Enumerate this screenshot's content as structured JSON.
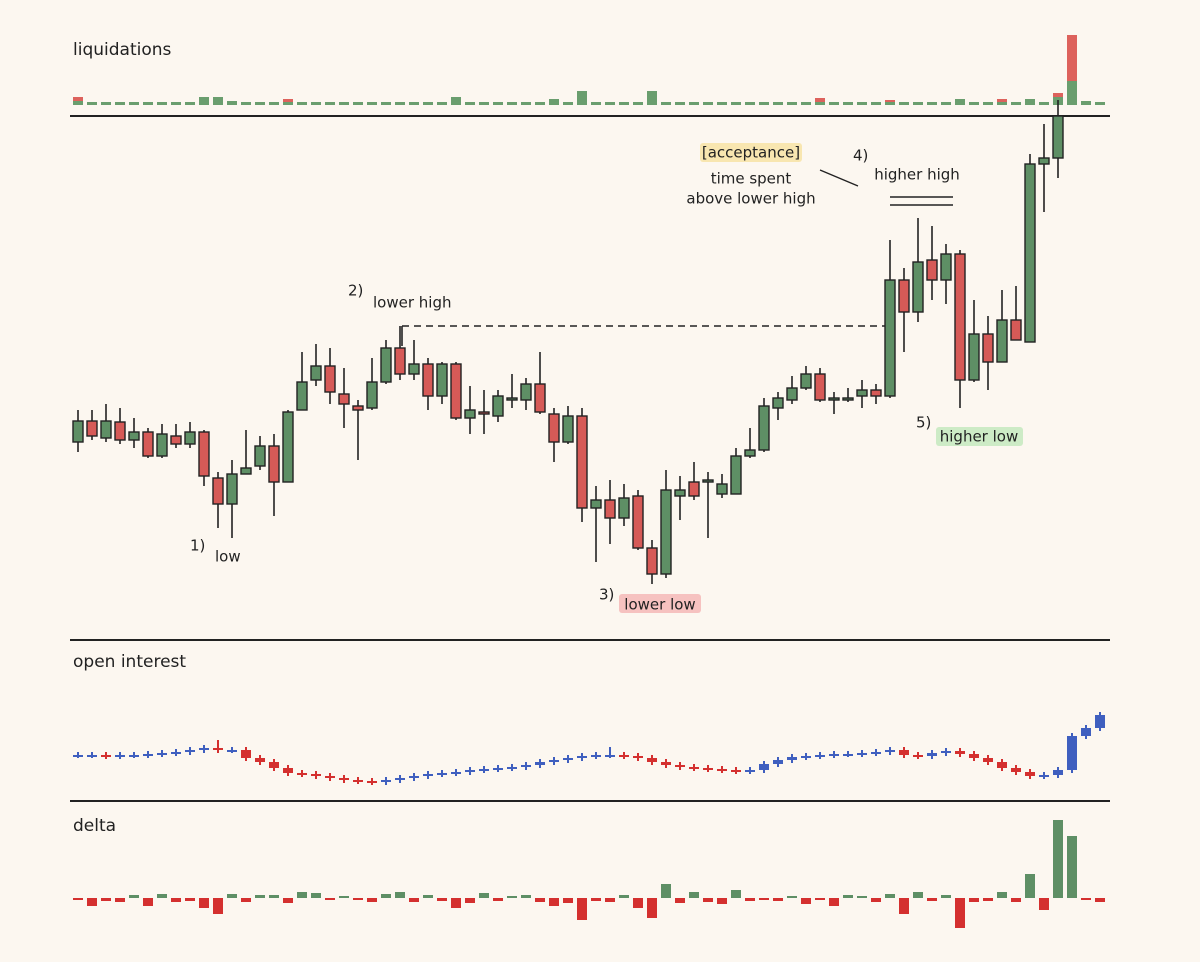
{
  "chart_data": [
    {
      "type": "bar",
      "title": "liquidations",
      "stacked": true,
      "ylim": [
        0,
        80
      ],
      "series": [
        {
          "color": "#6a9e6e",
          "values": [
            4,
            3,
            3,
            3,
            3,
            3,
            3,
            3,
            3,
            8,
            8,
            4,
            3,
            3,
            3,
            3,
            3,
            3,
            3,
            3,
            3,
            3,
            3,
            3,
            3,
            3,
            3,
            8,
            3,
            3,
            3,
            3,
            3,
            3,
            6,
            3,
            14,
            3,
            3,
            3,
            3,
            14,
            3,
            3,
            3,
            3,
            3,
            3,
            3,
            3,
            3,
            3,
            3,
            3,
            3,
            3,
            3,
            3,
            3,
            3,
            3,
            3,
            3,
            6,
            3,
            3,
            3,
            3,
            6,
            3,
            8,
            24,
            4,
            3
          ]
        },
        {
          "color": "#dd625c",
          "values": [
            4,
            0,
            0,
            0,
            0,
            0,
            0,
            0,
            0,
            0,
            0,
            0,
            0,
            0,
            0,
            3,
            0,
            0,
            0,
            0,
            0,
            0,
            0,
            0,
            0,
            0,
            0,
            0,
            0,
            0,
            0,
            0,
            0,
            0,
            0,
            0,
            0,
            0,
            0,
            0,
            0,
            0,
            0,
            0,
            0,
            0,
            0,
            0,
            0,
            0,
            0,
            0,
            0,
            4,
            0,
            0,
            0,
            0,
            2,
            0,
            0,
            0,
            0,
            0,
            0,
            0,
            3,
            0,
            0,
            0,
            4,
            46,
            0,
            0
          ]
        }
      ]
    },
    {
      "type": "candlestick",
      "ylim": [
        0,
        522
      ],
      "up_color": "#5e8f65",
      "down_color": "#d65a57",
      "body_stroke": "#222",
      "open": [
        198,
        219,
        202,
        218,
        200,
        208,
        184,
        204,
        196,
        208,
        162,
        136,
        166,
        174,
        194,
        158,
        230,
        260,
        274,
        246,
        234,
        232,
        258,
        292,
        266,
        276,
        244,
        276,
        222,
        228,
        224,
        240,
        240,
        256,
        226,
        198,
        224,
        132,
        140,
        122,
        144,
        92,
        66,
        144,
        158,
        158,
        146,
        146,
        184,
        190,
        232,
        240,
        252,
        266,
        240,
        240,
        244,
        250,
        244,
        360,
        328,
        380,
        360,
        386,
        260,
        306,
        278,
        320,
        298,
        476,
        482
      ],
      "high": [
        230,
        230,
        236,
        232,
        222,
        212,
        216,
        216,
        218,
        210,
        168,
        180,
        210,
        204,
        206,
        230,
        288,
        296,
        292,
        272,
        240,
        282,
        300,
        314,
        300,
        282,
        278,
        278,
        254,
        250,
        250,
        266,
        262,
        288,
        232,
        234,
        232,
        154,
        160,
        156,
        150,
        100,
        170,
        164,
        178,
        168,
        166,
        192,
        212,
        242,
        248,
        264,
        274,
        272,
        248,
        252,
        260,
        256,
        400,
        372,
        422,
        414,
        396,
        390,
        340,
        324,
        350,
        354,
        486,
        516,
        540
      ],
      "low": [
        188,
        200,
        198,
        196,
        192,
        182,
        182,
        192,
        192,
        154,
        112,
        102,
        166,
        170,
        124,
        158,
        230,
        254,
        236,
        212,
        180,
        230,
        256,
        260,
        260,
        230,
        236,
        220,
        206,
        206,
        218,
        232,
        230,
        226,
        178,
        196,
        118,
        78,
        96,
        114,
        90,
        56,
        62,
        120,
        140,
        102,
        142,
        146,
        182,
        188,
        220,
        236,
        250,
        238,
        226,
        238,
        232,
        236,
        242,
        288,
        318,
        340,
        336,
        232,
        258,
        250,
        278,
        300,
        298,
        428,
        462
      ],
      "close": [
        219,
        204,
        219,
        200,
        208,
        184,
        206,
        196,
        208,
        164,
        136,
        166,
        172,
        194,
        158,
        228,
        258,
        274,
        248,
        236,
        230,
        258,
        292,
        266,
        276,
        244,
        276,
        222,
        230,
        226,
        244,
        242,
        256,
        228,
        198,
        224,
        132,
        140,
        122,
        142,
        92,
        66,
        150,
        150,
        144,
        160,
        156,
        184,
        190,
        234,
        242,
        252,
        266,
        240,
        242,
        242,
        250,
        244,
        360,
        328,
        378,
        360,
        386,
        260,
        306,
        278,
        320,
        300,
        476,
        482,
        524
      ],
      "annotations": [
        "1)",
        "low",
        "2)",
        "lower high",
        "3)",
        "lower low",
        "[acceptance]",
        "time spent",
        "above lower high",
        "4)",
        "higher high",
        "5)",
        "higher low"
      ]
    },
    {
      "type": "candlestick",
      "title": "open interest",
      "ylim": [
        0,
        100
      ],
      "up_color": "#3f5fbf",
      "down_color": "#d4302f",
      "open": [
        45,
        45,
        45,
        44,
        45,
        45,
        46,
        47,
        48,
        50,
        52,
        50,
        50,
        42,
        38,
        32,
        27,
        26,
        24,
        22,
        20,
        19,
        18,
        20,
        22,
        24,
        26,
        27,
        28,
        30,
        31,
        32,
        33,
        35,
        38,
        40,
        42,
        44,
        45,
        45,
        44,
        42,
        38,
        35,
        33,
        32,
        31,
        30,
        29,
        30,
        36,
        40,
        43,
        44,
        45,
        46,
        46,
        47,
        48,
        50,
        45,
        44,
        47,
        49,
        46,
        42,
        38,
        32,
        28,
        24,
        25,
        30,
        64,
        72
      ],
      "high": [
        48,
        48,
        48,
        48,
        48,
        49,
        50,
        51,
        53,
        55,
        60,
        53,
        53,
        45,
        41,
        35,
        30,
        29,
        27,
        25,
        23,
        22,
        23,
        25,
        27,
        29,
        30,
        31,
        33,
        34,
        35,
        36,
        38,
        41,
        43,
        45,
        47,
        48,
        53,
        48,
        47,
        45,
        41,
        38,
        36,
        35,
        34,
        33,
        33,
        39,
        43,
        46,
        47,
        48,
        49,
        49,
        50,
        51,
        53,
        53,
        48,
        50,
        52,
        52,
        49,
        45,
        41,
        35,
        31,
        28,
        33,
        67,
        75,
        88
      ],
      "low": [
        42,
        42,
        41,
        41,
        42,
        42,
        43,
        44,
        45,
        47,
        47,
        47,
        39,
        35,
        29,
        24,
        23,
        21,
        19,
        17,
        16,
        15,
        15,
        17,
        19,
        21,
        23,
        24,
        25,
        27,
        28,
        29,
        30,
        32,
        35,
        37,
        39,
        41,
        42,
        41,
        39,
        35,
        32,
        30,
        29,
        28,
        27,
        26,
        26,
        27,
        33,
        37,
        40,
        41,
        42,
        43,
        43,
        44,
        45,
        42,
        41,
        41,
        44,
        43,
        39,
        35,
        29,
        25,
        21,
        21,
        22,
        27,
        61,
        69
      ],
      "close": [
        45,
        45,
        44,
        45,
        45,
        46,
        47,
        48,
        50,
        52,
        50,
        50,
        42,
        38,
        32,
        27,
        26,
        24,
        22,
        20,
        19,
        18,
        20,
        22,
        24,
        26,
        27,
        28,
        30,
        31,
        32,
        33,
        35,
        38,
        40,
        42,
        44,
        45,
        45,
        44,
        42,
        38,
        35,
        33,
        32,
        31,
        30,
        29,
        30,
        36,
        40,
        43,
        44,
        45,
        46,
        46,
        47,
        48,
        50,
        45,
        44,
        47,
        49,
        46,
        42,
        38,
        32,
        28,
        24,
        25,
        30,
        64,
        72,
        85
      ]
    },
    {
      "type": "bar",
      "title": "delta",
      "ylim": [
        -40,
        80
      ],
      "up_color": "#5e8f65",
      "down_color": "#d4302f",
      "values": [
        -2,
        -8,
        -3,
        -4,
        3,
        -8,
        4,
        -4,
        -3,
        -10,
        -16,
        4,
        -4,
        3,
        3,
        -5,
        6,
        5,
        -2,
        2,
        -2,
        -4,
        4,
        6,
        -4,
        3,
        -3,
        -10,
        -5,
        5,
        -3,
        2,
        3,
        -4,
        -8,
        -5,
        -22,
        -3,
        -4,
        3,
        -10,
        -20,
        14,
        -5,
        6,
        -4,
        -6,
        8,
        -3,
        -2,
        -3,
        2,
        -6,
        -2,
        -8,
        3,
        2,
        -4,
        4,
        -16,
        6,
        -3,
        3,
        -30,
        -4,
        -3,
        6,
        -4,
        24,
        -12,
        78,
        62,
        -2,
        -4
      ]
    }
  ]
}
